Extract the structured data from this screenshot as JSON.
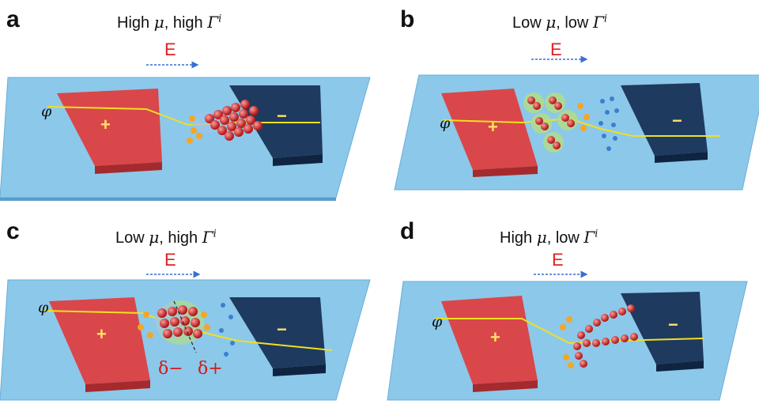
{
  "panels": [
    {
      "letter": "a",
      "title": {
        "pre": "High ",
        "mu": "μ",
        "mid": ", high ",
        "gamma": "Γ",
        "sup": "i"
      },
      "field_label": "E",
      "phi_label": "φ",
      "plus_label": "+",
      "minus_label": "−"
    },
    {
      "letter": "b",
      "title": {
        "pre": "Low ",
        "mu": "μ",
        "mid": ", low ",
        "gamma": "Γ",
        "sup": "i"
      },
      "field_label": "E",
      "phi_label": "φ",
      "plus_label": "+",
      "minus_label": "−"
    },
    {
      "letter": "c",
      "title": {
        "pre": "Low ",
        "mu": "μ",
        "mid": ", high ",
        "gamma": "Γ",
        "sup": "i"
      },
      "field_label": "E",
      "phi_label": "φ",
      "plus_label": "+",
      "minus_label": "−",
      "delta_minus": "δ−",
      "delta_plus": "δ+"
    },
    {
      "letter": "d",
      "title": {
        "pre": "High ",
        "mu": "μ",
        "mid": ", low ",
        "gamma": "Γ",
        "sup": "i"
      },
      "field_label": "E",
      "phi_label": "φ",
      "plus_label": "+",
      "minus_label": "−"
    }
  ],
  "colors": {
    "substrate": "#8cc8ea",
    "anode": "#d9474a",
    "cathode": "#1f3a5f",
    "potential_line": "#f0e020",
    "particle": "#d93a3a",
    "field_arrow": "#3a6fd0"
  }
}
